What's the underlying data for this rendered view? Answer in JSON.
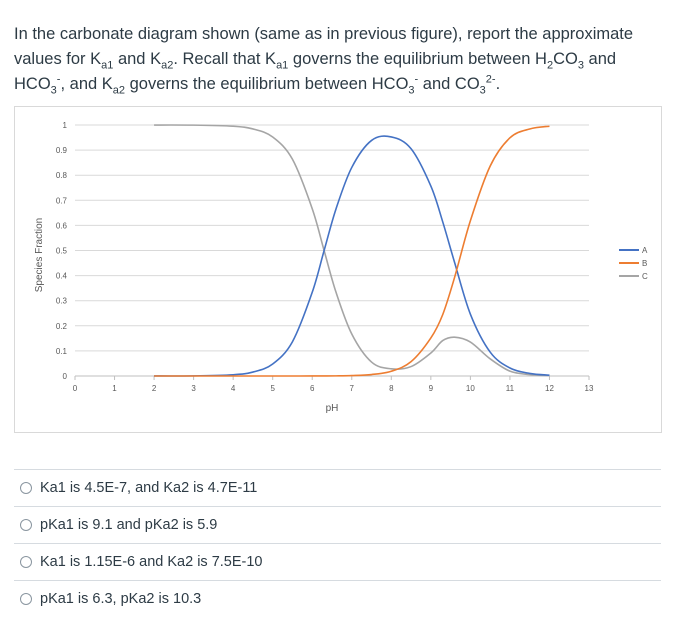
{
  "question": {
    "p1": "In the carbonate diagram shown (same as in previous figure), report the approximate values for K",
    "ka1_sub": "a1",
    "p2": " and K",
    "ka2_sub": "a2",
    "p3": ". Recall that K",
    "ka1b_sub": "a1",
    "p4": " governs the equilibrium between H",
    "h2co3_sub2": "2",
    "p5": "CO",
    "h2co3_sub3": "3",
    "p6": " and HCO",
    "hco3_sub": "3",
    "hco3_sup": "-",
    "p7": ", and K",
    "ka2b_sub": "a2",
    "p8": " governs the equilibrium between HCO",
    "hco3b_sub": "3",
    "hco3b_sup": "-",
    "p9": " and CO",
    "co3_sub": "3",
    "co3_sup": "2-",
    "p10": "."
  },
  "chart_data": {
    "type": "line",
    "title": "",
    "xlabel": "pH",
    "ylabel": "Species Fraction",
    "xlim": [
      0,
      13
    ],
    "ylim": [
      0,
      1
    ],
    "x_ticks": [
      "0",
      "1",
      "2",
      "3",
      "4",
      "5",
      "6",
      "7",
      "8",
      "9",
      "10",
      "11",
      "12",
      "13"
    ],
    "y_ticks": [
      "0",
      "0.1",
      "0.2",
      "0.3",
      "0.4",
      "0.5",
      "0.6",
      "0.7",
      "0.8",
      "0.9",
      "1"
    ],
    "grid": true,
    "legend_position": "right",
    "x": [
      2,
      3,
      4,
      4.5,
      5,
      5.5,
      6,
      6.3,
      6.6,
      7,
      7.5,
      8,
      8.5,
      9,
      9.3,
      9.6,
      10,
      10.5,
      11,
      11.5,
      12
    ],
    "series": [
      {
        "name": "A",
        "color": "#4472c4",
        "values": [
          0.0001,
          0.0005,
          0.005,
          0.0157,
          0.0477,
          0.1366,
          0.3335,
          0.4997,
          0.665,
          0.8309,
          0.9385,
          0.9524,
          0.9052,
          0.7566,
          0.6143,
          0.4527,
          0.2464,
          0.0954,
          0.0319,
          0.0103,
          0.0033
        ]
      },
      {
        "name": "B",
        "color": "#ed7d31",
        "values": [
          0,
          0,
          0,
          0,
          0,
          0,
          0.0001,
          0.0002,
          0.0005,
          0.0017,
          0.0059,
          0.019,
          0.0572,
          0.1516,
          0.2446,
          0.3926,
          0.6184,
          0.8362,
          0.9488,
          0.9842,
          0.9951
        ]
      },
      {
        "name": "C",
        "color": "#a5a5a5",
        "values": [
          0.9999,
          0.9995,
          0.995,
          0.9843,
          0.9523,
          0.8634,
          0.6664,
          0.5001,
          0.3345,
          0.1674,
          0.0556,
          0.0286,
          0.0376,
          0.0918,
          0.1411,
          0.1547,
          0.1352,
          0.0684,
          0.0193,
          0.0055,
          0.0016
        ]
      }
    ]
  },
  "answers": [
    "Ka1 is 4.5E-7, and Ka2 is 4.7E-11",
    "pKa1 is 9.1 and pKa2 is 5.9",
    "Ka1 is 1.15E-6 and Ka2 is 7.5E-10",
    "pKa1 is 6.3, pKa2 is 10.3"
  ]
}
